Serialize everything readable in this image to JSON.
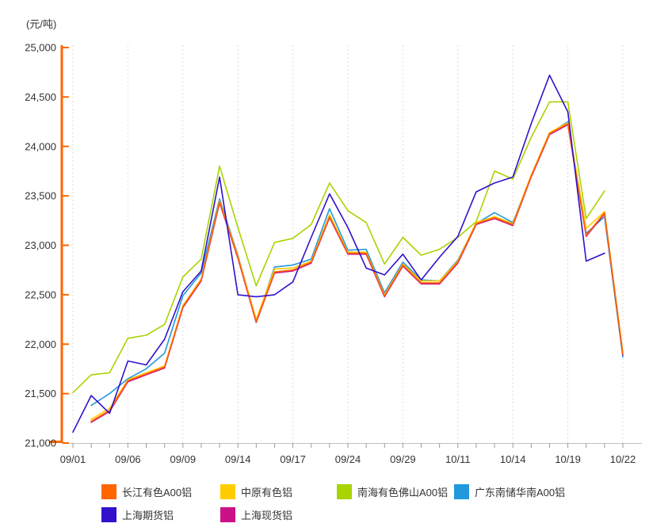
{
  "unit_label": "(元/吨)",
  "axis_colors": {
    "y_axis": "#FF6600",
    "x_axis": "#BFBFBF",
    "x_tick": "#999999",
    "grid": "#DCDCDC",
    "tick_text": "#333333"
  },
  "chart_data": {
    "type": "line",
    "title": "",
    "ylabel": "(元/吨)",
    "xlabel": "",
    "ylim": [
      21000,
      25000
    ],
    "y_tick_step": 500,
    "y_tick_labels": [
      "21,000",
      "21,500",
      "22,000",
      "22,500",
      "23,000",
      "23,500",
      "24,000",
      "24,500",
      "25,000"
    ],
    "grid": "vertical-dashed",
    "legend_position": "bottom",
    "label_every_n_points": 3,
    "x": [
      "09/01",
      "09/02",
      "09/03",
      "09/06",
      "09/07",
      "09/08",
      "09/09",
      "09/10",
      "09/13",
      "09/14",
      "09/15",
      "09/16",
      "09/17",
      "09/22",
      "09/23",
      "09/24",
      "09/27",
      "09/28",
      "09/29",
      "09/30",
      "10/08",
      "10/11",
      "10/12",
      "10/13",
      "10/14",
      "10/15",
      "10/18",
      "10/19",
      "10/20",
      "10/21",
      "10/22"
    ],
    "x_axis_visible_labels": [
      "09/01",
      "09/06",
      "09/09",
      "09/14",
      "09/17",
      "09/24",
      "09/29",
      "10/11",
      "10/14",
      "10/19",
      "10/22"
    ],
    "series": [
      {
        "name": "长江有色A00铝",
        "color": "#FF6600",
        "values": [
          null,
          21220,
          21330,
          21630,
          21700,
          21770,
          22380,
          22650,
          23440,
          22880,
          22230,
          22730,
          22750,
          22830,
          23290,
          22920,
          22920,
          22490,
          22800,
          22620,
          22620,
          22830,
          23220,
          23280,
          23210,
          23700,
          24130,
          24230,
          23100,
          23330,
          21900
        ]
      },
      {
        "name": "中原有色铝",
        "color": "#FFCC00",
        "values": [
          null,
          21240,
          21350,
          21640,
          21710,
          21780,
          22390,
          22660,
          23450,
          22890,
          22250,
          22760,
          22770,
          22840,
          23310,
          22930,
          22930,
          22500,
          22810,
          22640,
          22640,
          22840,
          23230,
          23290,
          23220,
          23710,
          24140,
          24240,
          23170,
          23340,
          21920
        ]
      },
      {
        "name": "南海有色佛山A00铝",
        "color": "#A8D400",
        "values": [
          21510,
          21690,
          21710,
          22060,
          22090,
          22200,
          22680,
          22860,
          23800,
          23180,
          22590,
          23030,
          23070,
          23210,
          23630,
          23350,
          23230,
          22810,
          23080,
          22900,
          22960,
          23080,
          23240,
          23750,
          23670,
          24090,
          24450,
          24450,
          23270,
          23550,
          null
        ]
      },
      {
        "name": "广东南储华南A00铝",
        "color": "#2299DD",
        "values": [
          null,
          21380,
          21500,
          21650,
          21750,
          21910,
          22490,
          22720,
          23470,
          22900,
          22230,
          22780,
          22800,
          22860,
          23370,
          22950,
          22960,
          22520,
          22830,
          22650,
          22640,
          22850,
          23220,
          23330,
          23230,
          23700,
          24130,
          24250,
          23120,
          23290,
          21870
        ]
      },
      {
        "name": "上海期货铝",
        "color": "#3311CC",
        "values": [
          21110,
          21480,
          21300,
          21830,
          21790,
          22050,
          22530,
          22740,
          23690,
          22500,
          22480,
          22500,
          22630,
          23080,
          23520,
          23180,
          22770,
          22700,
          22910,
          22650,
          22880,
          23090,
          23540,
          23630,
          23690,
          24230,
          24720,
          24350,
          22840,
          22920,
          null
        ]
      },
      {
        "name": "上海现货铝",
        "color": "#CC1188",
        "values": [
          null,
          21210,
          21320,
          21620,
          21690,
          21760,
          22370,
          22640,
          23430,
          22870,
          22220,
          22720,
          22740,
          22820,
          23280,
          22910,
          22910,
          22480,
          22790,
          22610,
          22610,
          22820,
          23210,
          23270,
          23200,
          23690,
          24120,
          24220,
          23090,
          23320,
          21890
        ]
      }
    ],
    "render_order": [
      2,
      3,
      1,
      5,
      0,
      4
    ]
  }
}
